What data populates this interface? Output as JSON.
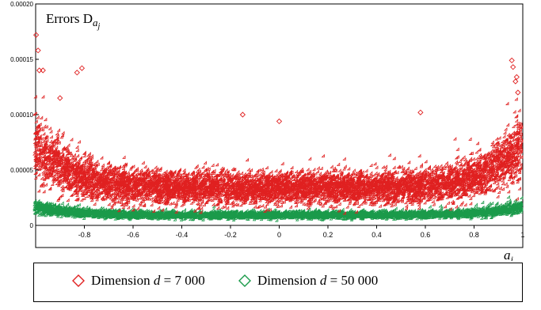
{
  "chart_data": {
    "type": "scatter",
    "title": "",
    "annotation": "Errors D",
    "annotation_sub": "a",
    "annotation_subsub": "j",
    "xlabel": "a",
    "xlabel_sub": "j",
    "ylabel": "",
    "xlim": [
      -1,
      1
    ],
    "ylim": [
      0,
      0.0002
    ],
    "xticks": [
      "-0.8",
      "-0.6",
      "-0.4",
      "-0.2",
      "0",
      "0.2",
      "0.4",
      "0.6",
      "0.8",
      "1"
    ],
    "xtick_values": [
      -0.8,
      -0.6,
      -0.4,
      -0.2,
      0,
      0.2,
      0.4,
      0.6,
      0.8,
      1
    ],
    "yticks": [
      "0",
      "0.00005",
      "0.00010",
      "0.00015",
      "0.00020"
    ],
    "ytick_values": [
      0,
      5e-05,
      0.0001,
      0.00015,
      0.0002
    ],
    "marker": "diamond",
    "legend_position": "bottom",
    "series": [
      {
        "name": "Dimension d = 7 000",
        "legend_prefix": "Dimension",
        "legend_var": "d",
        "legend_value": "= 7 000",
        "color": "#e02020",
        "n_points": 7000,
        "center_mean": 3.3e-05,
        "edge_mean": 7e-05,
        "notable_points": [
          {
            "x": -0.998,
            "y": 0.000172
          },
          {
            "x": -0.99,
            "y": 0.000158
          },
          {
            "x": -0.985,
            "y": 0.00014
          },
          {
            "x": -0.97,
            "y": 0.00014
          },
          {
            "x": -0.83,
            "y": 0.000138
          },
          {
            "x": -0.81,
            "y": 0.000142
          },
          {
            "x": -0.9,
            "y": 0.000115
          },
          {
            "x": -0.15,
            "y": 0.0001
          },
          {
            "x": 0.0,
            "y": 9.4e-05
          },
          {
            "x": 0.58,
            "y": 0.000102
          },
          {
            "x": 0.955,
            "y": 0.000149
          },
          {
            "x": 0.96,
            "y": 0.000143
          },
          {
            "x": 0.97,
            "y": 0.00013
          },
          {
            "x": 0.975,
            "y": 0.000134
          },
          {
            "x": 0.98,
            "y": 0.00012
          }
        ]
      },
      {
        "name": "Dimension d = 50 000",
        "legend_prefix": "Dimension",
        "legend_var": "d",
        "legend_value": "= 50 000",
        "color": "#1a9a4a",
        "n_points": 5000,
        "center_mean": 8.5e-06,
        "edge_mean": 1.6e-05
      }
    ]
  }
}
